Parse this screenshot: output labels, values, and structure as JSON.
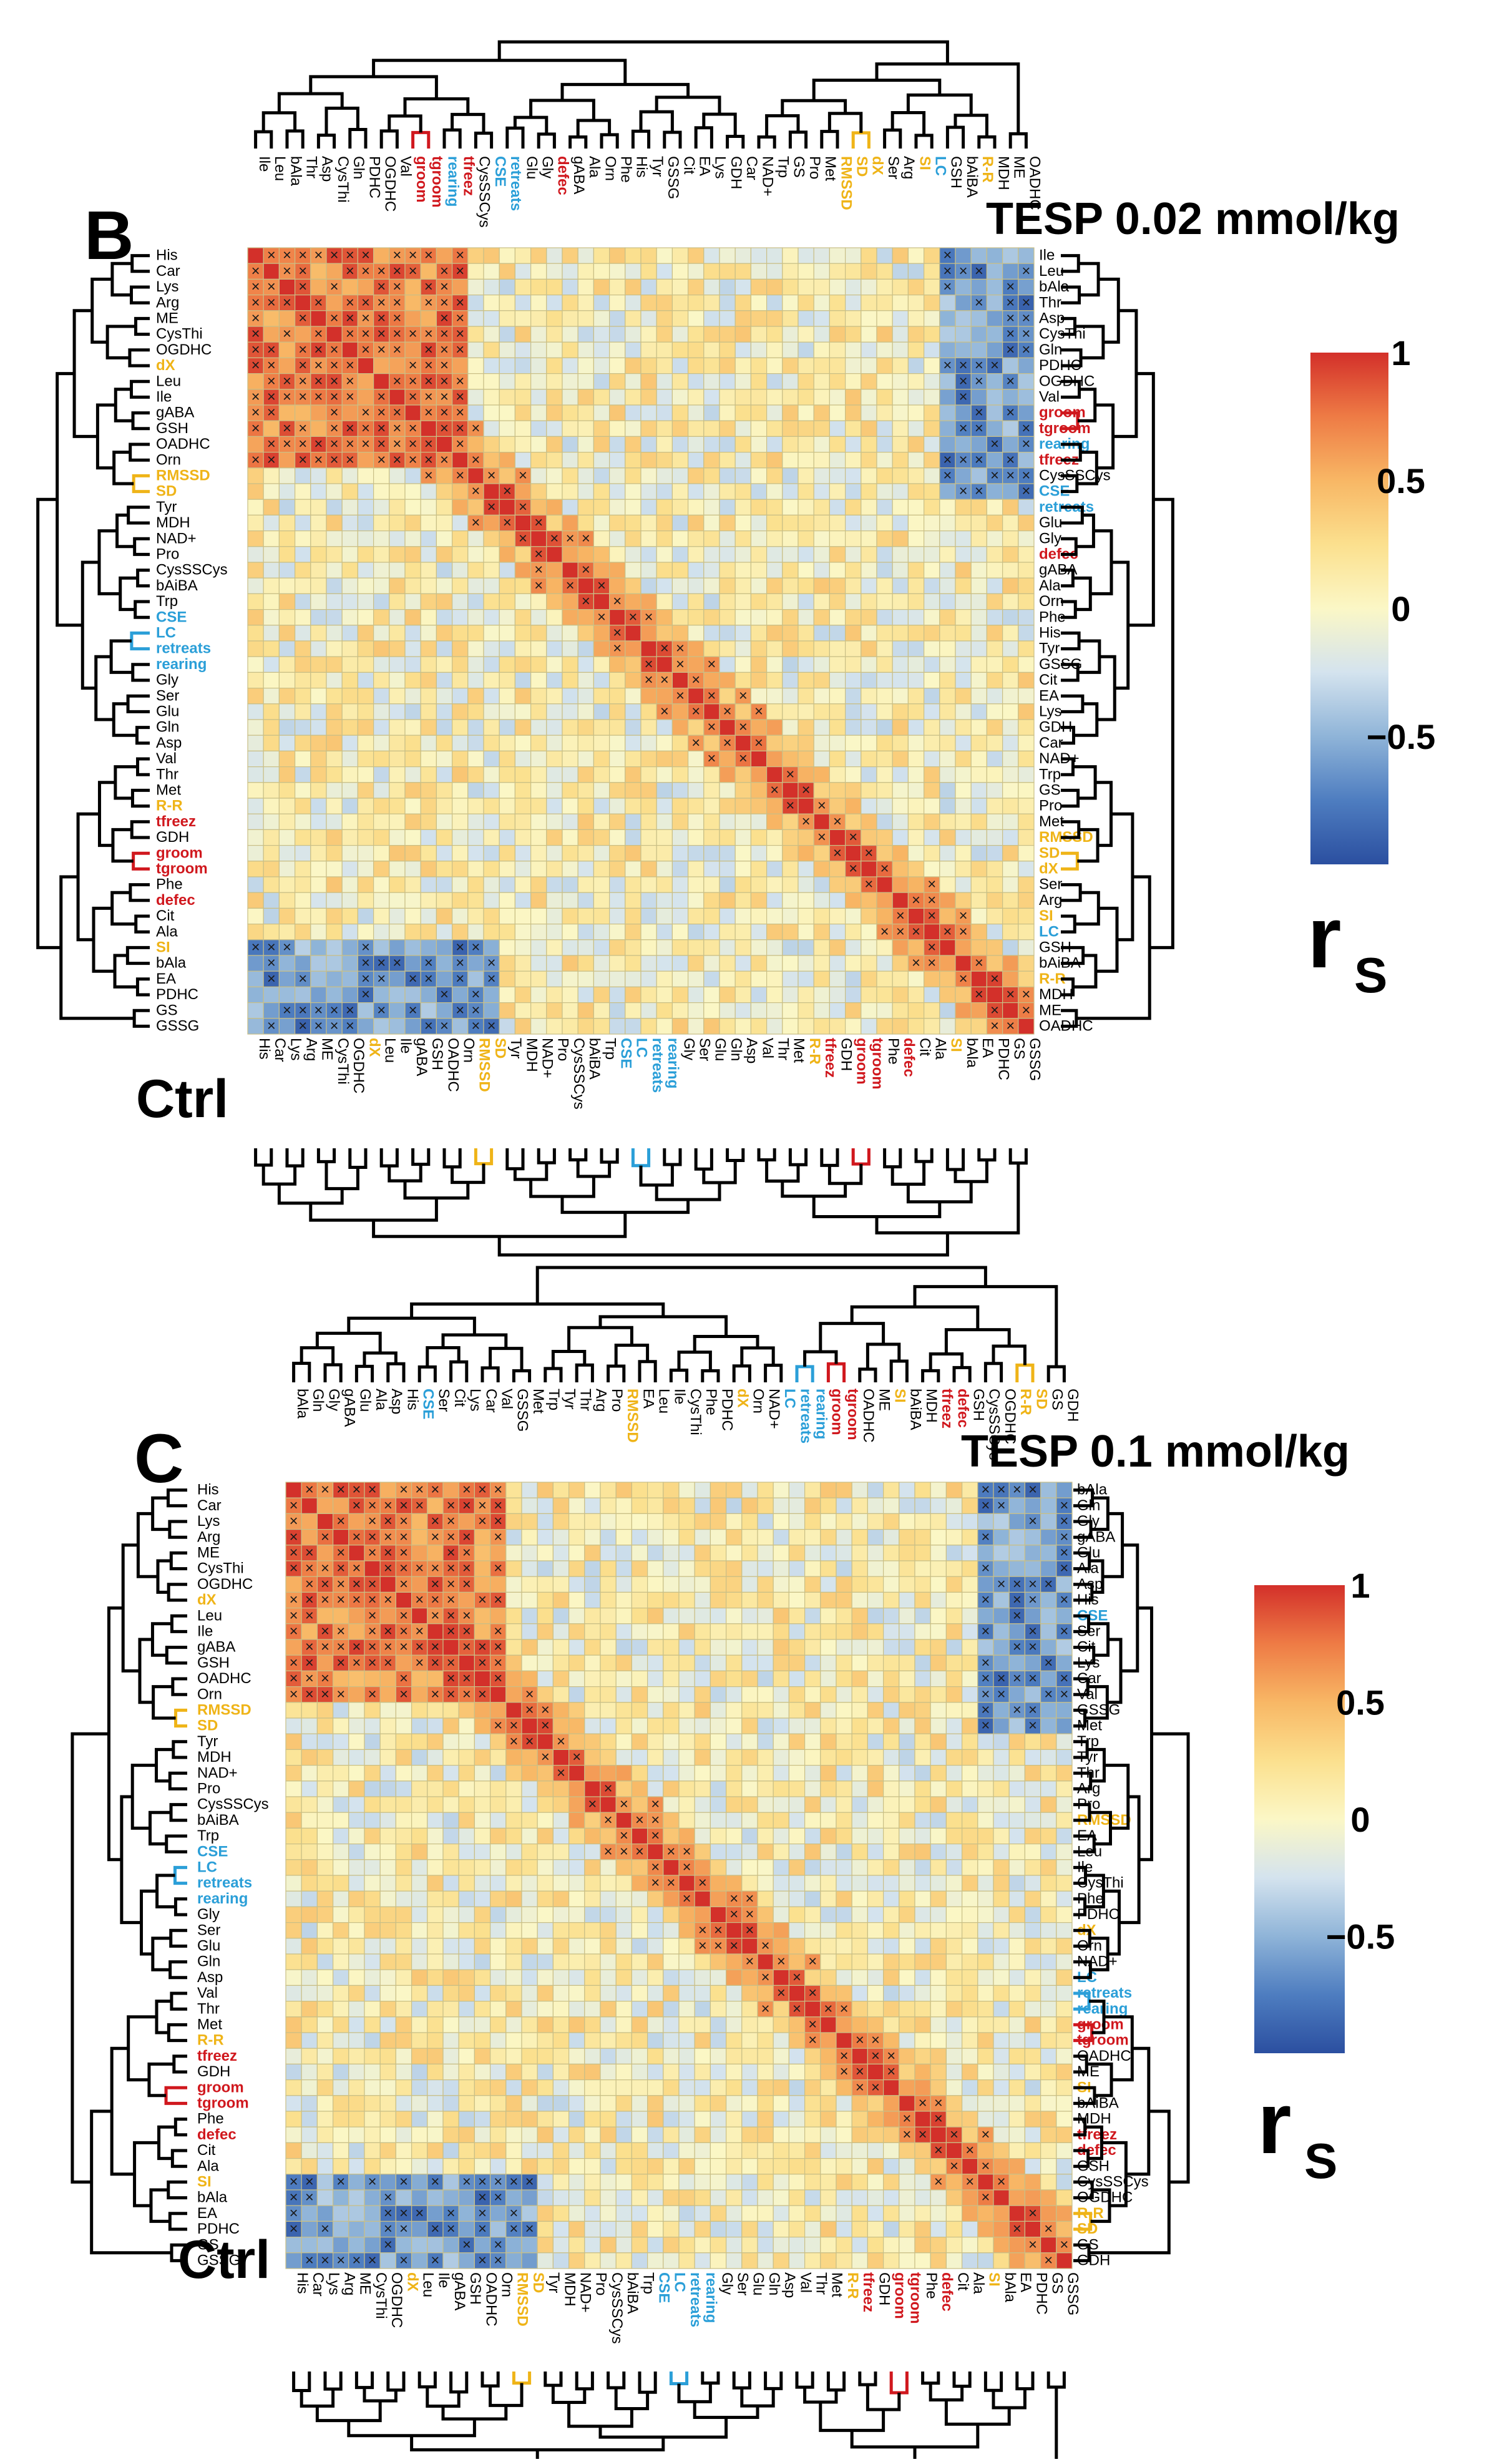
{
  "colors": {
    "black": "#000000",
    "red": "#d0181e",
    "blue": "#2b9fd8",
    "gold": "#efb418",
    "cell_border": "#c9bf86",
    "scale": [
      "#2b4fa0",
      "#4e7dc0",
      "#8fb4d8",
      "#d4e3ee",
      "#fbf7c6",
      "#fbe08e",
      "#f8b765",
      "#ee7b45",
      "#d3302a"
    ]
  },
  "chart_data": [
    {
      "panel_label": "B",
      "type": "heatmap",
      "title": "TESP 0.02 mmol/kg",
      "row_title": "Ctrl",
      "color_scale": {
        "min": -1,
        "max": 1,
        "ticks": [
          "1",
          "0.5",
          "0",
          "−0.5"
        ],
        "title": "r",
        "title_sub": "S"
      },
      "rows": [
        "His",
        "Car",
        "Lys",
        "Arg",
        "ME",
        "CysThi",
        "OGDHC",
        "dX",
        "Leu",
        "Ile",
        "gABA",
        "GSH",
        "OADHC",
        "Orn",
        "RMSSD",
        "SD",
        "Tyr",
        "MDH",
        "NAD+",
        "Pro",
        "CysSSCys",
        "bAiBA",
        "Trp",
        "CSE",
        "LC",
        "retreats",
        "rearing",
        "Gly",
        "Ser",
        "Glu",
        "Gln",
        "Asp",
        "Val",
        "Thr",
        "Met",
        "R-R",
        "tfreez",
        "GDH",
        "groom",
        "tgroom",
        "Phe",
        "defec",
        "Cit",
        "Ala",
        "SI",
        "bAla",
        "EA",
        "PDHC",
        "GS",
        "GSSG"
      ],
      "row_colors": [
        "k",
        "k",
        "k",
        "k",
        "k",
        "k",
        "k",
        "g",
        "k",
        "k",
        "k",
        "k",
        "k",
        "k",
        "g",
        "g",
        "k",
        "k",
        "k",
        "k",
        "k",
        "k",
        "k",
        "b",
        "b",
        "b",
        "b",
        "k",
        "k",
        "k",
        "k",
        "k",
        "k",
        "k",
        "k",
        "g",
        "r",
        "k",
        "r",
        "r",
        "k",
        "r",
        "k",
        "k",
        "g",
        "k",
        "k",
        "k",
        "k",
        "k"
      ],
      "columns": [
        "Ile",
        "Leu",
        "bAla",
        "Thr",
        "Asp",
        "CysThi",
        "Gln",
        "PDHC",
        "OGDHC",
        "Val",
        "groom",
        "tgroom",
        "rearing",
        "tfreez",
        "CysSSCys",
        "CSE",
        "retreats",
        "Glu",
        "Gly",
        "defec",
        "gABA",
        "Ala",
        "Orn",
        "Phe",
        "His",
        "Tyr",
        "GSSG",
        "Cit",
        "EA",
        "Lys",
        "GDH",
        "Car",
        "NAD+",
        "Trp",
        "GS",
        "Pro",
        "Met",
        "RMSSD",
        "SD",
        "dX",
        "Ser",
        "Arg",
        "SI",
        "LC",
        "GSH",
        "bAiBA",
        "R-R",
        "MDH",
        "ME",
        "OADHC"
      ],
      "column_colors": [
        "k",
        "k",
        "k",
        "k",
        "k",
        "k",
        "k",
        "k",
        "k",
        "k",
        "r",
        "r",
        "b",
        "r",
        "k",
        "b",
        "b",
        "k",
        "k",
        "r",
        "k",
        "k",
        "k",
        "k",
        "k",
        "k",
        "k",
        "k",
        "k",
        "k",
        "k",
        "k",
        "k",
        "k",
        "k",
        "k",
        "k",
        "g",
        "g",
        "g",
        "k",
        "k",
        "g",
        "b",
        "k",
        "k",
        "g",
        "k",
        "k",
        "k"
      ]
    },
    {
      "panel_label": "C",
      "type": "heatmap",
      "title": "TESP 0.1 mmol/kg",
      "row_title": "Ctrl",
      "color_scale": {
        "min": -1,
        "max": 1,
        "ticks": [
          "1",
          "0.5",
          "0",
          "−0.5"
        ],
        "title": "r",
        "title_sub": "S"
      },
      "rows": [
        "His",
        "Car",
        "Lys",
        "Arg",
        "ME",
        "CysThi",
        "OGDHC",
        "dX",
        "Leu",
        "Ile",
        "gABA",
        "GSH",
        "OADHC",
        "Orn",
        "RMSSD",
        "SD",
        "Tyr",
        "MDH",
        "NAD+",
        "Pro",
        "CysSSCys",
        "bAiBA",
        "Trp",
        "CSE",
        "LC",
        "retreats",
        "rearing",
        "Gly",
        "Ser",
        "Glu",
        "Gln",
        "Asp",
        "Val",
        "Thr",
        "Met",
        "R-R",
        "tfreez",
        "GDH",
        "groom",
        "tgroom",
        "Phe",
        "defec",
        "Cit",
        "Ala",
        "SI",
        "bAla",
        "EA",
        "PDHC",
        "GS",
        "GSSG"
      ],
      "row_colors": [
        "k",
        "k",
        "k",
        "k",
        "k",
        "k",
        "k",
        "g",
        "k",
        "k",
        "k",
        "k",
        "k",
        "k",
        "g",
        "g",
        "k",
        "k",
        "k",
        "k",
        "k",
        "k",
        "k",
        "b",
        "b",
        "b",
        "b",
        "k",
        "k",
        "k",
        "k",
        "k",
        "k",
        "k",
        "k",
        "g",
        "r",
        "k",
        "r",
        "r",
        "k",
        "r",
        "k",
        "k",
        "g",
        "k",
        "k",
        "k",
        "k",
        "k"
      ],
      "columns": [
        "bAla",
        "Gln",
        "Gly",
        "gABA",
        "Glu",
        "Ala",
        "Asp",
        "His",
        "CSE",
        "Ser",
        "Cit",
        "Lys",
        "Car",
        "Val",
        "GSSG",
        "Met",
        "Trp",
        "Tyr",
        "Thr",
        "Arg",
        "Pro",
        "RMSSD",
        "EA",
        "Leu",
        "Ile",
        "CysThi",
        "Phe",
        "PDHC",
        "dX",
        "Orn",
        "NAD+",
        "LC",
        "retreats",
        "rearing",
        "groom",
        "tgroom",
        "OADHC",
        "ME",
        "SI",
        "bAiBA",
        "MDH",
        "tfreez",
        "defec",
        "GSH",
        "CysSSCys",
        "OGDHC",
        "R-R",
        "SD",
        "GS",
        "GDH"
      ],
      "column_colors": [
        "k",
        "k",
        "k",
        "k",
        "k",
        "k",
        "k",
        "k",
        "b",
        "k",
        "k",
        "k",
        "k",
        "k",
        "k",
        "k",
        "k",
        "k",
        "k",
        "k",
        "k",
        "g",
        "k",
        "k",
        "k",
        "k",
        "k",
        "k",
        "g",
        "k",
        "k",
        "b",
        "b",
        "b",
        "r",
        "r",
        "k",
        "k",
        "g",
        "k",
        "k",
        "r",
        "r",
        "k",
        "k",
        "k",
        "g",
        "g",
        "k",
        "k"
      ]
    }
  ]
}
